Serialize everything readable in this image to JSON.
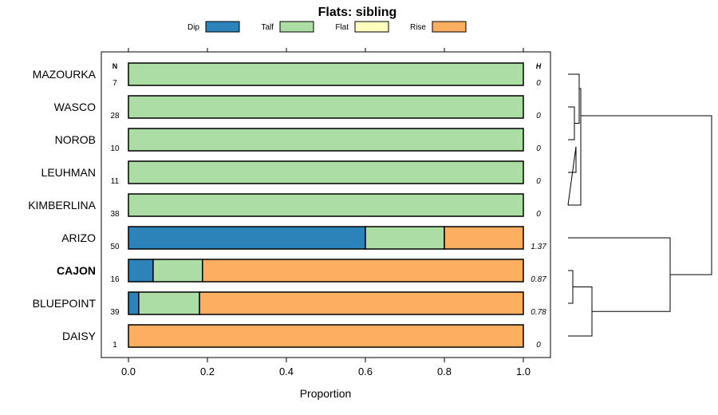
{
  "chart_data": {
    "type": "bar",
    "orientation": "horizontal",
    "stacked": true,
    "title": "Flats: sibling",
    "xlabel": "Proportion",
    "ylabel": "",
    "xlim": [
      0,
      1
    ],
    "xticks": [
      "0.0",
      "0.2",
      "0.4",
      "0.6",
      "0.8",
      "1.0"
    ],
    "n_header": "N",
    "h_header": "H",
    "legend_position": "top",
    "series": [
      {
        "name": "Dip",
        "color": "#2b83ba"
      },
      {
        "name": "Talf",
        "color": "#abdda4"
      },
      {
        "name": "Flat",
        "color": "#ffffbf"
      },
      {
        "name": "Rise",
        "color": "#fdae61"
      }
    ],
    "rows": [
      {
        "label": "MAZOURKA",
        "n": "7",
        "h": "0",
        "bold": false,
        "values": [
          0,
          1,
          0,
          0
        ]
      },
      {
        "label": "WASCO",
        "n": "28",
        "h": "0",
        "bold": false,
        "values": [
          0,
          1,
          0,
          0
        ]
      },
      {
        "label": "NOROB",
        "n": "10",
        "h": "0",
        "bold": false,
        "values": [
          0,
          1,
          0,
          0
        ]
      },
      {
        "label": "LEUHMAN",
        "n": "11",
        "h": "0",
        "bold": false,
        "values": [
          0,
          1,
          0,
          0
        ]
      },
      {
        "label": "KIMBERLINA",
        "n": "38",
        "h": "0",
        "bold": false,
        "values": [
          0,
          1,
          0,
          0
        ]
      },
      {
        "label": "ARIZO",
        "n": "50",
        "h": "1.37",
        "bold": false,
        "values": [
          0.6,
          0.2,
          0,
          0.2
        ]
      },
      {
        "label": "CAJON",
        "n": "16",
        "h": "0.87",
        "bold": true,
        "values": [
          0.0625,
          0.125,
          0,
          0.8125
        ]
      },
      {
        "label": "BLUEPOINT",
        "n": "39",
        "h": "0.78",
        "bold": false,
        "values": [
          0.026,
          0.154,
          0,
          0.82
        ]
      },
      {
        "label": "DAISY",
        "n": "1",
        "h": "0",
        "bold": false,
        "values": [
          0,
          0,
          0,
          1
        ]
      }
    ],
    "dendrogram": "((((MAZOURKA,(WASCO,NOROB)),LEUHMAN),KIMBERLINA),(ARIZO,((CAJON,BLUEPOINT),DAISY)))"
  }
}
